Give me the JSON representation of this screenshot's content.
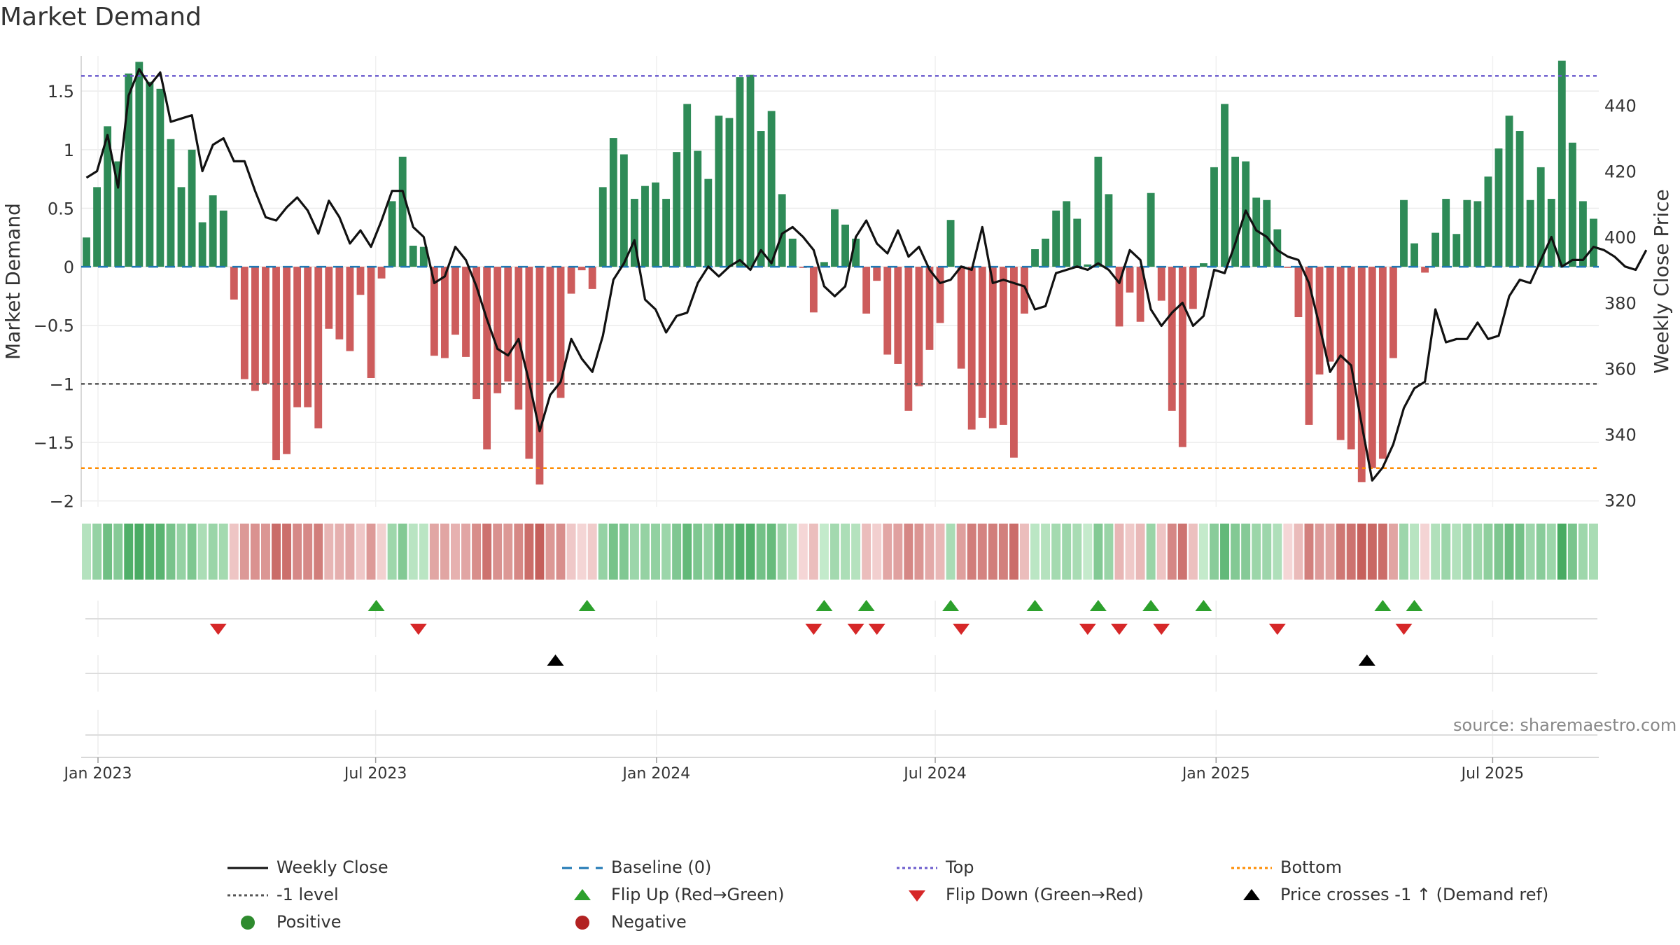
{
  "chart_data": {
    "type": "bar",
    "title": "Market Demand",
    "ylabel": "Market Demand",
    "y2label": "Weekly Close Price",
    "ylim": [
      -2.05,
      1.8
    ],
    "y2lim": [
      318,
      455
    ],
    "yticks": [
      -2,
      -1.5,
      -1,
      -0.5,
      0,
      0.5,
      1,
      1.5
    ],
    "ytick_labels": [
      "−2",
      "−1.5",
      "−1",
      "−0.5",
      "0",
      "0.5",
      "1",
      "1.5"
    ],
    "y2ticks": [
      320,
      340,
      360,
      380,
      400,
      420,
      440
    ],
    "y2tick_labels": [
      "320",
      "340",
      "360",
      "380",
      "400",
      "420",
      "440"
    ],
    "x_start_week": 0,
    "x_end_week": 140,
    "x_ticks": [
      {
        "label": "Jan 2023",
        "week": 0
      },
      {
        "label": "Jul 2023",
        "week": 25.9
      },
      {
        "label": "Jan 2024",
        "week": 52.1
      },
      {
        "label": "Jul 2024",
        "week": 78.1
      },
      {
        "label": "Jan 2025",
        "week": 104.3
      },
      {
        "label": "Jul 2025",
        "week": 130.1
      }
    ],
    "reference_lines": {
      "top": 1.63,
      "bottom": -1.72,
      "minus_one": -1,
      "baseline": 0
    },
    "series": [
      {
        "name": "Market Demand",
        "type": "bar",
        "values": [
          0.25,
          0.68,
          1.2,
          0.9,
          1.65,
          1.75,
          1.58,
          1.52,
          1.09,
          0.68,
          1.0,
          0.38,
          0.61,
          0.48,
          -0.28,
          -0.96,
          -1.06,
          -1.0,
          -1.65,
          -1.6,
          -1.2,
          -1.2,
          -1.38,
          -0.53,
          -0.62,
          -0.72,
          -0.24,
          -0.95,
          -0.1,
          0.56,
          0.94,
          0.18,
          0.17,
          -0.76,
          -0.78,
          -0.58,
          -0.77,
          -1.13,
          -1.56,
          -1.08,
          -0.98,
          -1.22,
          -1.64,
          -1.86,
          -0.98,
          -1.12,
          -0.23,
          -0.03,
          -0.19,
          0.68,
          1.1,
          0.96,
          0.58,
          0.69,
          0.72,
          0.58,
          0.98,
          1.39,
          0.99,
          0.75,
          1.29,
          1.27,
          1.62,
          1.64,
          1.16,
          1.33,
          0.62,
          0.24,
          -0.01,
          -0.39,
          0.04,
          0.49,
          0.36,
          0.24,
          -0.4,
          -0.12,
          -0.75,
          -0.83,
          -1.23,
          -1.02,
          -0.71,
          -0.48,
          0.4,
          -0.87,
          -1.39,
          -1.29,
          -1.38,
          -1.35,
          -1.63,
          -0.4,
          0.15,
          0.24,
          0.48,
          0.56,
          0.41,
          0.02,
          0.94,
          0.62,
          -0.51,
          -0.22,
          -0.47,
          0.63,
          -0.29,
          -1.23,
          -1.54,
          -0.36,
          0.03,
          0.85,
          1.39,
          0.94,
          0.9,
          0.59,
          0.57,
          0.32,
          -0.01,
          -0.43,
          -1.35,
          -0.92,
          -0.81,
          -1.48,
          -1.56,
          -1.84,
          -1.72,
          -1.64,
          -0.78,
          0.57,
          0.2,
          -0.05,
          0.29,
          0.58,
          0.28,
          0.57,
          0.56,
          0.77,
          1.01,
          1.29,
          1.16,
          0.57,
          0.85,
          0.58,
          1.76,
          1.06,
          0.56,
          0.41
        ]
      },
      {
        "name": "Weekly Close",
        "type": "line",
        "axis": "right",
        "values": [
          418,
          420,
          431,
          415,
          443,
          451,
          446,
          450,
          435,
          436,
          437,
          420,
          428,
          430,
          423,
          423,
          414,
          406,
          405,
          409,
          412,
          408,
          401,
          411,
          406,
          398,
          402,
          397,
          405,
          414,
          414,
          403,
          400,
          386,
          388,
          397,
          393,
          385,
          375,
          366,
          364,
          369,
          356,
          341,
          352,
          356,
          369,
          363,
          359,
          370,
          387,
          392,
          399,
          381,
          378,
          371,
          376,
          377,
          386,
          391,
          388,
          391,
          393,
          390,
          396,
          392,
          401,
          403,
          400,
          396,
          385,
          382,
          385,
          400,
          405,
          398,
          395,
          402,
          394,
          397,
          390,
          386,
          387,
          391,
          390,
          403,
          386,
          387,
          386,
          385,
          378,
          379,
          389,
          390,
          391,
          390,
          392,
          390,
          386,
          396,
          393,
          378,
          373,
          377,
          380,
          373,
          376,
          390,
          389,
          398,
          408,
          402,
          400,
          396,
          394,
          393,
          386,
          373,
          359,
          364,
          361,
          343,
          326,
          330,
          337,
          348,
          354,
          356,
          378,
          368,
          369,
          369,
          374,
          369,
          370,
          382,
          387,
          386,
          393,
          400,
          391,
          393,
          393,
          397,
          396,
          394,
          391,
          390,
          396
        ]
      }
    ],
    "flip_up_weeks": [
      27.5,
      47.5,
      70,
      74,
      82,
      90,
      96,
      101,
      106,
      123,
      126
    ],
    "flip_down_weeks": [
      12.5,
      31.5,
      69,
      73,
      75,
      83,
      95,
      98,
      102,
      113,
      125
    ],
    "price_cross_weeks": [
      44.5,
      121.5
    ]
  },
  "labels": {
    "title": "Market Demand",
    "source": "source: sharemaestro.com"
  },
  "legend": [
    {
      "key": "weekly_close",
      "label": "Weekly Close"
    },
    {
      "key": "baseline",
      "label": "Baseline (0)"
    },
    {
      "key": "top",
      "label": "Top"
    },
    {
      "key": "bottom",
      "label": "Bottom"
    },
    {
      "key": "minus_one",
      "label": "-1 level"
    },
    {
      "key": "flip_up",
      "label": "Flip Up (Red→Green)"
    },
    {
      "key": "flip_down",
      "label": "Flip Down (Green→Red)"
    },
    {
      "key": "price_cross",
      "label": "Price crosses -1 ↑ (Demand ref)"
    },
    {
      "key": "positive",
      "label": "Positive"
    },
    {
      "key": "negative",
      "label": "Negative"
    }
  ],
  "colors": {
    "positive_bar": "#2e8b57",
    "negative_bar": "#cd5c5c",
    "line": "#111111",
    "baseline": "#1f77b4",
    "top": "#6a5acd",
    "bottom": "#ff8c00",
    "minus_one": "#555555",
    "flip_up": "#2ca02c",
    "flip_down": "#d62728",
    "price_cross": "#000000",
    "positive_dot": "#2e8b2e",
    "negative_dot": "#b22222"
  }
}
